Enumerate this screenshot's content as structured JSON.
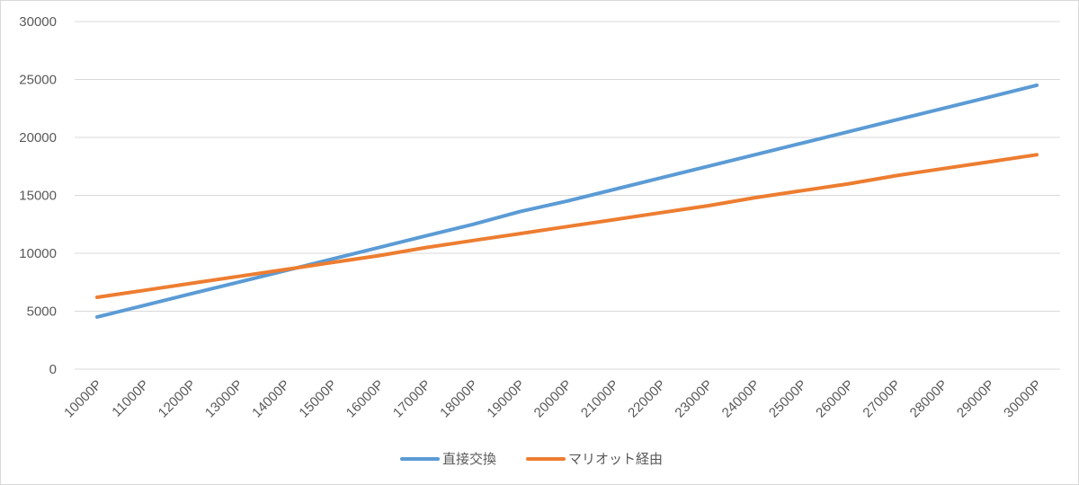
{
  "chart_data": {
    "type": "line",
    "title": "",
    "xlabel": "",
    "ylabel": "",
    "categories": [
      "10000P",
      "11000P",
      "12000P",
      "13000P",
      "14000P",
      "15000P",
      "16000P",
      "17000P",
      "18000P",
      "19000P",
      "20000P",
      "21000P",
      "22000P",
      "23000P",
      "24000P",
      "25000P",
      "26000P",
      "27000P",
      "28000P",
      "29000P",
      "30000P"
    ],
    "ylim": [
      0,
      30000
    ],
    "yticks": [
      0,
      5000,
      10000,
      15000,
      20000,
      25000,
      30000
    ],
    "grid": true,
    "legend_position": "bottom",
    "series": [
      {
        "name": "直接交換",
        "color": "#5b9bd5",
        "values": [
          4500,
          5500,
          6500,
          7500,
          8500,
          9500,
          10500,
          11500,
          12500,
          13600,
          14500,
          15500,
          16500,
          17500,
          18500,
          19500,
          20500,
          21500,
          22500,
          23500,
          24500
        ]
      },
      {
        "name": "マリオット経由",
        "color": "#ed7d31",
        "values": [
          6200,
          6800,
          7400,
          8000,
          8600,
          9200,
          9800,
          10500,
          11100,
          11700,
          12300,
          12900,
          13500,
          14100,
          14800,
          15400,
          16000,
          16700,
          17300,
          17900,
          18500
        ]
      }
    ]
  }
}
